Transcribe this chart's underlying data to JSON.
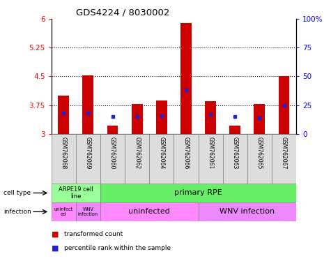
{
  "title": "GDS4224 / 8030002",
  "samples": [
    "GSM762068",
    "GSM762069",
    "GSM762060",
    "GSM762062",
    "GSM762064",
    "GSM762066",
    "GSM762061",
    "GSM762063",
    "GSM762065",
    "GSM762067"
  ],
  "transformed_counts": [
    4.0,
    4.52,
    3.22,
    3.78,
    3.87,
    5.88,
    3.86,
    3.22,
    3.78,
    4.5
  ],
  "percentile_ranks": [
    18,
    18,
    15,
    15,
    16,
    38,
    17,
    15,
    14,
    25
  ],
  "ylim": [
    3.0,
    6.0
  ],
  "yticks": [
    3,
    3.75,
    4.5,
    5.25,
    6
  ],
  "ytick_labels": [
    "3",
    "3.75",
    "4.5",
    "5.25",
    "6"
  ],
  "right_yticks_pct": [
    0,
    25,
    50,
    75,
    100
  ],
  "right_ytick_labels": [
    "0",
    "25",
    "50",
    "75",
    "100%"
  ],
  "bar_color": "#CC0000",
  "blue_marker_color": "#2222CC",
  "bar_width": 0.45,
  "cell_type_color_arpe": "#99FF99",
  "cell_type_color_primary": "#66EE66",
  "infection_color_uninfected": "#FF88FF",
  "infection_color_wnv": "#EE88FF",
  "sample_bg_color": "#DDDDDD",
  "legend_items": [
    "transformed count",
    "percentile rank within the sample"
  ]
}
